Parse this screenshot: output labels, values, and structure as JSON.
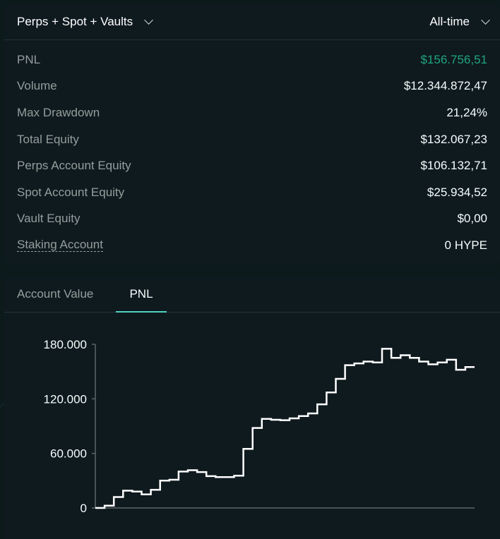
{
  "summary": {
    "filter_dropdown": "Perps + Spot + Vaults",
    "range_dropdown": "All-time",
    "rows": [
      {
        "label": "PNL",
        "value": "$156.756,51"
      },
      {
        "label": "Volume",
        "value": "$12.344.872,47"
      },
      {
        "label": "Max Drawdown",
        "value": "21,24%"
      },
      {
        "label": "Total Equity",
        "value": "$132.067,23"
      },
      {
        "label": "Perps Account Equity",
        "value": "$106.132,71"
      },
      {
        "label": "Spot Account Equity",
        "value": "$25.934,52"
      },
      {
        "label": "Vault Equity",
        "value": "$0,00"
      },
      {
        "label": "Staking Account",
        "value": "0 HYPE"
      }
    ]
  },
  "chart_tabs": {
    "account_value": "Account Value",
    "pnl": "PNL",
    "active": "PNL"
  },
  "colors": {
    "positive": "#1fa67d",
    "accent": "#50d2c1",
    "background": "#0f1a1f"
  },
  "chart_data": {
    "type": "line",
    "step": true,
    "ylim": [
      0,
      180000
    ],
    "y_ticks": [
      "180.000",
      "120.000",
      "60.000",
      "0"
    ],
    "y_tick_values": [
      180000,
      120000,
      60000,
      0
    ],
    "series": [
      {
        "values": [
          0,
          2500,
          12000,
          19000,
          18000,
          15000,
          20000,
          30000,
          31000,
          40000,
          41500,
          39500,
          35000,
          34000,
          34000,
          35500,
          65000,
          88000,
          98000,
          97000,
          96500,
          98500,
          101000,
          104000,
          114000,
          127000,
          142000,
          157000,
          159000,
          161000,
          160000,
          175000,
          165000,
          168000,
          165000,
          161000,
          158000,
          160000,
          163000,
          152000,
          155000
        ]
      }
    ]
  }
}
